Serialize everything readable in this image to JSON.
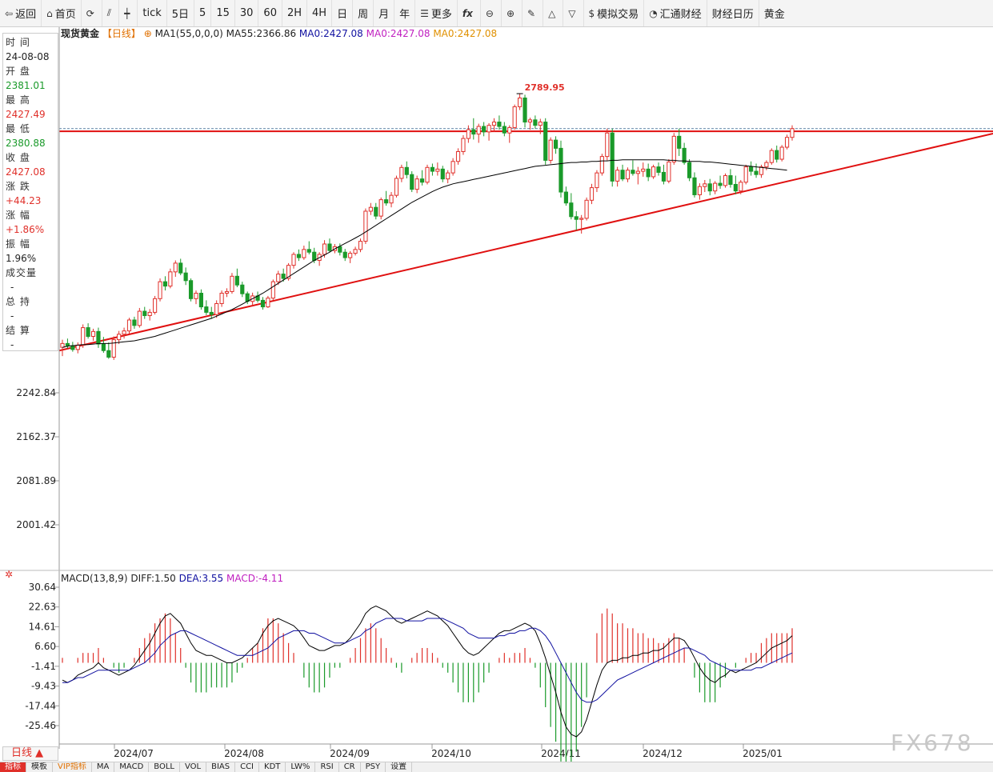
{
  "toolbar": {
    "items": [
      "返回",
      "首页",
      "",
      "",
      "",
      "tick",
      "5日",
      "5",
      "15",
      "30",
      "60",
      "2H",
      "4H",
      "日",
      "周",
      "月",
      "年",
      "更多",
      "",
      "",
      "",
      "",
      "",
      "",
      "模拟交易",
      "汇通财经",
      "财经日历",
      "黄金"
    ]
  },
  "legend": {
    "symbol": "现货黄金",
    "period": "【日线】",
    "ma1": "MA1(55,0,0,0)",
    "ma55": "MA55:2366.86",
    "ma0a": "MA0:2427.08",
    "ma0b": "MA0:2427.08",
    "ma0c": "MA0:2427.08"
  },
  "info": {
    "time_label": "时 间",
    "time": "24-08-08",
    "open_label": "开 盘",
    "open": "2381.01",
    "high_label": "最 高",
    "high": "2427.49",
    "low_label": "最 低",
    "low": "2380.88",
    "close_label": "收 盘",
    "close": "2427.08",
    "chg_label": "涨 跌",
    "chg": "+44.23",
    "pct_label": "涨 幅",
    "pct": "+1.86%",
    "amp_label": "振 幅",
    "amp": "1.96%",
    "vol_label": "成交量",
    "vol": "-",
    "oi_label": "总 持",
    "oi": "-",
    "settle_label": "结 算",
    "settle": "-"
  },
  "macd_legend": {
    "name": "MACD(13,8,9)",
    "diff": "DIFF:1.50",
    "dea": "DEA:3.55",
    "macd": "MACD:-4.11"
  },
  "period_box": "日线 ▲",
  "bottom_tabs": [
    "指标",
    "模板",
    "VIP指标",
    "MA",
    "MACD",
    "BOLL",
    "VOL",
    "BIAS",
    "CCI",
    "KDT",
    "LW%",
    "RSI",
    "CR",
    "PSY",
    "设置"
  ],
  "watermark": "FX678",
  "colors": {
    "up": "#e0302a",
    "down": "#1a9a2a",
    "ma": "#000000",
    "trend": "#e01010",
    "diff": "#000000",
    "dea": "#1010a0"
  },
  "chart_data": {
    "type": "candlestick",
    "y_ticks": [
      "2242.84",
      "2162.37",
      "2081.89",
      "2001.42"
    ],
    "y_tick_values": [
      2242.84,
      2162.37,
      2081.89,
      2001.42
    ],
    "x_labels": [
      "2024/07",
      "2024/08",
      "2024/09",
      "2024/10",
      "2024/11",
      "2024/12",
      "2025/01"
    ],
    "annotations": [
      {
        "text": "2789.95",
        "value": 2789.95
      }
    ],
    "resistance_level": 2721,
    "ohlc": [
      [
        2326,
        2340,
        2310,
        2333
      ],
      [
        2333,
        2342,
        2324,
        2329
      ],
      [
        2329,
        2336,
        2318,
        2322
      ],
      [
        2322,
        2335,
        2315,
        2330
      ],
      [
        2330,
        2368,
        2325,
        2362
      ],
      [
        2362,
        2370,
        2342,
        2346
      ],
      [
        2346,
        2360,
        2338,
        2355
      ],
      [
        2355,
        2362,
        2325,
        2332
      ],
      [
        2332,
        2345,
        2316,
        2320
      ],
      [
        2320,
        2335,
        2305,
        2308
      ],
      [
        2308,
        2346,
        2303,
        2340
      ],
      [
        2340,
        2356,
        2332,
        2350
      ],
      [
        2350,
        2362,
        2342,
        2356
      ],
      [
        2356,
        2380,
        2350,
        2376
      ],
      [
        2376,
        2382,
        2360,
        2366
      ],
      [
        2366,
        2398,
        2362,
        2392
      ],
      [
        2392,
        2400,
        2378,
        2384
      ],
      [
        2384,
        2396,
        2375,
        2390
      ],
      [
        2390,
        2420,
        2386,
        2415
      ],
      [
        2415,
        2452,
        2410,
        2446
      ],
      [
        2446,
        2456,
        2430,
        2438
      ],
      [
        2438,
        2470,
        2434,
        2464
      ],
      [
        2464,
        2485,
        2455,
        2480
      ],
      [
        2480,
        2488,
        2458,
        2462
      ],
      [
        2462,
        2472,
        2440,
        2448
      ],
      [
        2448,
        2452,
        2410,
        2415
      ],
      [
        2415,
        2430,
        2405,
        2425
      ],
      [
        2425,
        2432,
        2395,
        2400
      ],
      [
        2400,
        2412,
        2385,
        2390
      ],
      [
        2390,
        2400,
        2378,
        2386
      ],
      [
        2386,
        2412,
        2380,
        2406
      ],
      [
        2406,
        2430,
        2400,
        2425
      ],
      [
        2425,
        2434,
        2418,
        2428
      ],
      [
        2428,
        2462,
        2424,
        2456
      ],
      [
        2456,
        2470,
        2436,
        2440
      ],
      [
        2440,
        2446,
        2418,
        2424
      ],
      [
        2424,
        2428,
        2405,
        2410
      ],
      [
        2410,
        2426,
        2402,
        2420
      ],
      [
        2420,
        2428,
        2408,
        2412
      ],
      [
        2412,
        2418,
        2395,
        2400
      ],
      [
        2400,
        2420,
        2398,
        2416
      ],
      [
        2416,
        2450,
        2412,
        2446
      ],
      [
        2446,
        2466,
        2440,
        2460
      ],
      [
        2460,
        2470,
        2446,
        2452
      ],
      [
        2452,
        2480,
        2448,
        2476
      ],
      [
        2476,
        2500,
        2470,
        2496
      ],
      [
        2496,
        2505,
        2484,
        2490
      ],
      [
        2490,
        2512,
        2486,
        2505
      ],
      [
        2505,
        2520,
        2496,
        2500
      ],
      [
        2500,
        2508,
        2480,
        2485
      ],
      [
        2485,
        2500,
        2475,
        2496
      ],
      [
        2496,
        2522,
        2490,
        2515
      ],
      [
        2515,
        2525,
        2500,
        2503
      ],
      [
        2503,
        2515,
        2498,
        2510
      ],
      [
        2510,
        2516,
        2494,
        2500
      ],
      [
        2500,
        2506,
        2484,
        2490
      ],
      [
        2490,
        2502,
        2480,
        2498
      ],
      [
        2498,
        2510,
        2494,
        2505
      ],
      [
        2505,
        2525,
        2500,
        2520
      ],
      [
        2520,
        2580,
        2515,
        2575
      ],
      [
        2575,
        2590,
        2568,
        2582
      ],
      [
        2582,
        2590,
        2560,
        2566
      ],
      [
        2566,
        2600,
        2560,
        2596
      ],
      [
        2596,
        2612,
        2585,
        2590
      ],
      [
        2590,
        2610,
        2582,
        2604
      ],
      [
        2604,
        2640,
        2600,
        2635
      ],
      [
        2635,
        2660,
        2628,
        2655
      ],
      [
        2655,
        2666,
        2635,
        2642
      ],
      [
        2642,
        2648,
        2610,
        2615
      ],
      [
        2615,
        2640,
        2608,
        2634
      ],
      [
        2634,
        2650,
        2622,
        2628
      ],
      [
        2628,
        2660,
        2624,
        2655
      ],
      [
        2655,
        2662,
        2640,
        2648
      ],
      [
        2648,
        2664,
        2640,
        2652
      ],
      [
        2652,
        2658,
        2628,
        2634
      ],
      [
        2634,
        2650,
        2626,
        2645
      ],
      [
        2645,
        2672,
        2640,
        2666
      ],
      [
        2666,
        2690,
        2660,
        2684
      ],
      [
        2684,
        2714,
        2678,
        2708
      ],
      [
        2708,
        2732,
        2700,
        2724
      ],
      [
        2724,
        2745,
        2706,
        2716
      ],
      [
        2716,
        2735,
        2700,
        2730
      ],
      [
        2730,
        2738,
        2712,
        2720
      ],
      [
        2720,
        2736,
        2704,
        2732
      ],
      [
        2732,
        2745,
        2720,
        2738
      ],
      [
        2738,
        2750,
        2724,
        2730
      ],
      [
        2730,
        2738,
        2712,
        2718
      ],
      [
        2718,
        2732,
        2700,
        2728
      ],
      [
        2728,
        2770,
        2724,
        2766
      ],
      [
        2766,
        2789.95,
        2760,
        2782
      ],
      [
        2782,
        2788,
        2728,
        2738
      ],
      [
        2738,
        2746,
        2724,
        2742
      ],
      [
        2742,
        2750,
        2726,
        2732
      ],
      [
        2732,
        2744,
        2716,
        2738
      ],
      [
        2738,
        2745,
        2660,
        2668
      ],
      [
        2668,
        2710,
        2662,
        2705
      ],
      [
        2705,
        2712,
        2680,
        2690
      ],
      [
        2690,
        2704,
        2600,
        2610
      ],
      [
        2610,
        2620,
        2585,
        2590
      ],
      [
        2590,
        2608,
        2560,
        2565
      ],
      [
        2565,
        2575,
        2540,
        2560
      ],
      [
        2560,
        2568,
        2534,
        2562
      ],
      [
        2562,
        2600,
        2558,
        2595
      ],
      [
        2595,
        2625,
        2588,
        2618
      ],
      [
        2618,
        2650,
        2610,
        2645
      ],
      [
        2645,
        2680,
        2640,
        2675
      ],
      [
        2675,
        2726,
        2668,
        2718
      ],
      [
        2718,
        2726,
        2620,
        2630
      ],
      [
        2630,
        2656,
        2620,
        2650
      ],
      [
        2650,
        2660,
        2630,
        2634
      ],
      [
        2634,
        2655,
        2628,
        2650
      ],
      [
        2650,
        2668,
        2640,
        2644
      ],
      [
        2644,
        2656,
        2624,
        2648
      ],
      [
        2648,
        2664,
        2638,
        2652
      ],
      [
        2652,
        2662,
        2630,
        2638
      ],
      [
        2638,
        2660,
        2634,
        2656
      ],
      [
        2656,
        2664,
        2640,
        2646
      ],
      [
        2646,
        2660,
        2624,
        2630
      ],
      [
        2630,
        2670,
        2626,
        2665
      ],
      [
        2665,
        2718,
        2660,
        2712
      ],
      [
        2712,
        2726,
        2676,
        2690
      ],
      [
        2690,
        2700,
        2660,
        2664
      ],
      [
        2664,
        2670,
        2630,
        2636
      ],
      [
        2636,
        2646,
        2600,
        2605
      ],
      [
        2605,
        2626,
        2596,
        2620
      ],
      [
        2620,
        2632,
        2610,
        2625
      ],
      [
        2625,
        2634,
        2604,
        2612
      ],
      [
        2612,
        2630,
        2606,
        2626
      ],
      [
        2626,
        2640,
        2616,
        2622
      ],
      [
        2622,
        2644,
        2618,
        2640
      ],
      [
        2640,
        2652,
        2618,
        2624
      ],
      [
        2624,
        2640,
        2606,
        2612
      ],
      [
        2612,
        2632,
        2606,
        2628
      ],
      [
        2628,
        2660,
        2624,
        2656
      ],
      [
        2656,
        2666,
        2640,
        2648
      ],
      [
        2648,
        2662,
        2636,
        2642
      ],
      [
        2642,
        2660,
        2636,
        2656
      ],
      [
        2656,
        2668,
        2650,
        2664
      ],
      [
        2664,
        2690,
        2660,
        2686
      ],
      [
        2686,
        2695,
        2664,
        2670
      ],
      [
        2670,
        2696,
        2666,
        2692
      ],
      [
        2692,
        2715,
        2688,
        2710
      ],
      [
        2710,
        2732,
        2704,
        2726
      ]
    ],
    "ma55": [
      2326,
      2328,
      2329,
      2330,
      2331,
      2331,
      2332,
      2333,
      2333,
      2333,
      2334,
      2335,
      2336,
      2337,
      2338,
      2340,
      2342,
      2344,
      2346,
      2349,
      2352,
      2355,
      2358,
      2361,
      2364,
      2367,
      2370,
      2373,
      2376,
      2379,
      2383,
      2387,
      2391,
      2395,
      2400,
      2405,
      2410,
      2415,
      2420,
      2425,
      2431,
      2437,
      2443,
      2449,
      2455,
      2461,
      2467,
      2473,
      2479,
      2485,
      2490,
      2495,
      2500,
      2506,
      2511,
      2516,
      2521,
      2526,
      2531,
      2537,
      2543,
      2549,
      2555,
      2561,
      2567,
      2573,
      2579,
      2585,
      2591,
      2596,
      2601,
      2606,
      2611,
      2615,
      2619,
      2622,
      2625,
      2627,
      2629,
      2631,
      2633,
      2635,
      2637,
      2639,
      2641,
      2643,
      2645,
      2647,
      2649,
      2651,
      2653,
      2655,
      2657,
      2658,
      2659,
      2660,
      2661,
      2662,
      2663,
      2664,
      2664,
      2665,
      2665,
      2666,
      2666,
      2667,
      2667,
      2668,
      2668,
      2669,
      2669,
      2669,
      2669,
      2669,
      2669,
      2669,
      2669,
      2669,
      2668,
      2668,
      2667,
      2667,
      2666,
      2666,
      2666,
      2665,
      2665,
      2664,
      2663,
      2662,
      2661,
      2660,
      2659,
      2658,
      2657,
      2656,
      2655,
      2654,
      2653,
      2652,
      2651,
      2650
    ],
    "macd": {
      "diff": [
        -7,
        -8,
        -7,
        -5,
        -4,
        -3,
        -2,
        0,
        -2,
        -3,
        -4,
        -5,
        -4,
        -3,
        -1,
        2,
        5,
        8,
        12,
        16,
        19,
        20,
        18,
        16,
        12,
        8,
        5,
        4,
        3,
        3,
        2,
        1,
        0,
        0,
        1,
        2,
        4,
        6,
        8,
        12,
        15,
        17,
        18,
        17,
        16,
        15,
        13,
        10,
        7,
        6,
        5,
        5,
        6,
        7,
        7,
        8,
        10,
        13,
        16,
        20,
        22,
        23,
        22,
        21,
        19,
        17,
        16,
        17,
        18,
        19,
        20,
        21,
        20,
        19,
        17,
        15,
        12,
        9,
        6,
        4,
        3,
        4,
        6,
        8,
        10,
        12,
        13,
        13,
        14,
        15,
        16,
        15,
        13,
        8,
        2,
        -5,
        -12,
        -20,
        -26,
        -29,
        -30,
        -28,
        -23,
        -16,
        -9,
        -3,
        0,
        1,
        1,
        2,
        2,
        3,
        3,
        4,
        4,
        5,
        5,
        6,
        8,
        10,
        10,
        9,
        6,
        2,
        -2,
        -5,
        -7,
        -8,
        -6,
        -5,
        -3,
        -4,
        -3,
        -2,
        -1,
        0,
        2,
        4,
        6,
        7,
        8,
        9,
        11,
        12
      ],
      "dea": [
        -8,
        -8,
        -7,
        -6,
        -6,
        -5,
        -4,
        -3,
        -3,
        -3,
        -3,
        -3,
        -3,
        -3,
        -2,
        -1,
        0,
        2,
        4,
        7,
        9,
        11,
        12,
        13,
        13,
        12,
        11,
        10,
        9,
        8,
        7,
        6,
        5,
        4,
        3,
        3,
        3,
        3,
        4,
        5,
        6,
        8,
        10,
        11,
        12,
        13,
        13,
        13,
        12,
        12,
        11,
        10,
        9,
        8,
        8,
        8,
        9,
        10,
        11,
        13,
        14,
        16,
        17,
        18,
        18,
        18,
        18,
        17,
        17,
        17,
        17,
        18,
        18,
        18,
        18,
        17,
        16,
        15,
        14,
        12,
        11,
        10,
        10,
        10,
        10,
        11,
        11,
        12,
        12,
        13,
        13,
        14,
        14,
        13,
        11,
        8,
        4,
        0,
        -4,
        -8,
        -12,
        -15,
        -16,
        -16,
        -15,
        -13,
        -11,
        -9,
        -7,
        -6,
        -5,
        -4,
        -3,
        -2,
        -1,
        0,
        1,
        2,
        3,
        4,
        5,
        6,
        6,
        5,
        4,
        3,
        1,
        0,
        -1,
        -2,
        -3,
        -3,
        -3,
        -3,
        -3,
        -2,
        -2,
        -1,
        0,
        1,
        2,
        3,
        4,
        5
      ]
    },
    "macd_y_ticks": [
      "30.64",
      "22.63",
      "14.61",
      "6.60",
      "-1.41",
      "-9.43",
      "-17.44",
      "-25.46"
    ],
    "macd_y_tick_values": [
      30.64,
      22.63,
      14.61,
      6.6,
      -1.41,
      -9.43,
      -17.44,
      -25.46
    ]
  }
}
